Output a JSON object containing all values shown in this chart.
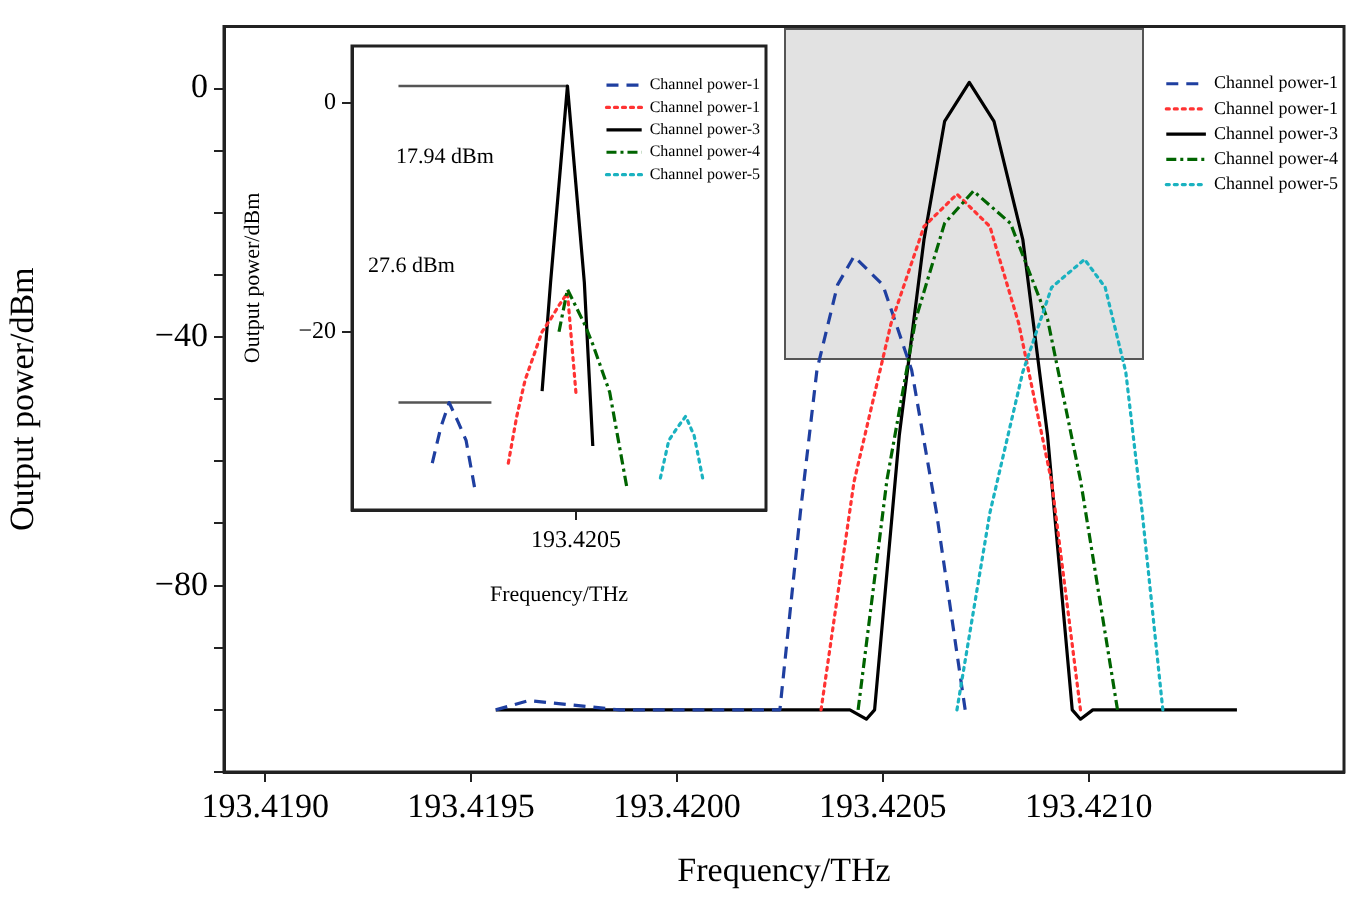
{
  "chart_data": [
    {
      "type": "line",
      "xlabel": "Frequency/THz",
      "ylabel": "Output power/dBm",
      "xlim": [
        193.4189,
        193.42162
      ],
      "ylim": [
        -110,
        10
      ],
      "xticks": [
        {
          "value": 193.419,
          "label": "193.4190"
        },
        {
          "value": 193.4195,
          "label": "193.4195"
        },
        {
          "value": 193.42,
          "label": "193.4200"
        },
        {
          "value": 193.4205,
          "label": "193.4205"
        },
        {
          "value": 193.421,
          "label": "193.4210"
        }
      ],
      "yticks": [
        {
          "value": -110,
          "label": null
        },
        {
          "value": -100,
          "label": null
        },
        {
          "value": -90,
          "label": null
        },
        {
          "value": -80,
          "label": "−80"
        },
        {
          "value": -70,
          "label": null
        },
        {
          "value": -60,
          "label": null
        },
        {
          "value": -50,
          "label": null
        },
        {
          "value": -40,
          "label": "−40"
        },
        {
          "value": -30,
          "label": null
        },
        {
          "value": -20,
          "label": null
        },
        {
          "value": -10,
          "label": null
        },
        {
          "value": 0,
          "label": "0"
        }
      ],
      "legend": "top right",
      "marker": "none",
      "grid": false,
      "series": [
        {
          "name": "Channel power-1",
          "color": "#1f3fa0",
          "line_style": "dashed",
          "x": [
            193.41956,
            193.41964,
            193.41986,
            193.42025,
            193.4203,
            193.42034,
            193.42039,
            193.42043,
            193.4205,
            193.42057,
            193.42063,
            193.4207
          ],
          "values": [
            -100,
            -98.5,
            -100,
            -100,
            -68.1,
            -45.3,
            -31.6,
            -27,
            -31.6,
            -45.3,
            -68.1,
            -100
          ]
        },
        {
          "name": "Channel power-1",
          "color": "#ff3333",
          "line_style": "dotted",
          "x": [
            193.42035,
            193.42043,
            193.42052,
            193.4206,
            193.42068,
            193.42076,
            193.42083,
            193.42091,
            193.42098
          ],
          "values": [
            -100,
            -63.3,
            -37.8,
            -22.2,
            -17,
            -22.2,
            -37.8,
            -63.3,
            -100
          ]
        },
        {
          "name": "Channel power-3",
          "color": "#000000",
          "line_style": "solid",
          "x": [
            193.41956,
            193.42042,
            193.42046,
            193.42048,
            193.42054,
            193.4206,
            193.42065,
            193.42071,
            193.42077,
            193.42084,
            193.4209,
            193.42096,
            193.42098,
            193.42101,
            193.42136
          ],
          "values": [
            -100,
            -100,
            -101.5,
            -100,
            -55.8,
            -24.3,
            -5.3,
            1,
            -5.3,
            -24.3,
            -55.8,
            -100,
            -101.5,
            -100,
            -100
          ]
        },
        {
          "name": "Channel power-4",
          "color": "#006400",
          "line_style": "dashdot",
          "x": [
            193.42044,
            193.42051,
            193.42058,
            193.42065,
            193.42072,
            193.42081,
            193.4209,
            193.42098,
            193.42107
          ],
          "values": [
            -100,
            -63,
            -37.1,
            -21.7,
            -16.5,
            -21.7,
            -37.1,
            -63,
            -100
          ]
        },
        {
          "name": "Channel power-5",
          "color": "#1ab2c0",
          "line_style": "dotted",
          "x": [
            193.42068,
            193.42076,
            193.42084,
            193.42091,
            193.42099,
            193.42104,
            193.42109,
            193.42113,
            193.42118
          ],
          "values": [
            -100,
            -68.3,
            -45.6,
            -32,
            -27.5,
            -32,
            -45.6,
            -68.3,
            -100
          ]
        }
      ]
    },
    {
      "type": "line",
      "xlabel": "Frequency/THz",
      "ylabel": "Output power/dBm",
      "ylim": [
        -35.6,
        5
      ],
      "categories": [
        null,
        null,
        null,
        null,
        null,
        null,
        null,
        null,
        null,
        null,
        null,
        null,
        null,
        null,
        null,
        null,
        null,
        null,
        null,
        null,
        null,
        null,
        null,
        null,
        null,
        null,
        "193.4205",
        null,
        null,
        null,
        null,
        null,
        null,
        null,
        null,
        null,
        null,
        null,
        null,
        null,
        null,
        null,
        null,
        null,
        null,
        null,
        null,
        null,
        null
      ],
      "yticks": [
        {
          "value": -20,
          "label": "−20"
        },
        {
          "value": 0,
          "label": "0"
        }
      ],
      "legend": "top right",
      "marker": "none",
      "grid": false,
      "annotations": [
        "17.94 dBm",
        "27.6 dBm"
      ],
      "series": [
        {
          "name": "Channel power-1",
          "color": "#1f3fa0",
          "line_style": "dashed",
          "values": [
            null,
            null,
            null,
            null,
            null,
            null,
            null,
            null,
            null,
            -31.5,
            -28.4,
            -26.2,
            -27.8,
            -29.5,
            -33.6,
            null,
            null,
            null,
            null,
            null,
            null,
            null,
            null,
            null,
            null,
            null,
            null,
            null,
            null,
            null,
            null,
            null,
            null,
            null,
            null,
            null,
            null,
            null,
            null,
            null,
            null,
            null,
            null,
            null,
            null,
            null,
            null,
            null,
            null
          ]
        },
        {
          "name": "Channel power-1",
          "color": "#ff3333",
          "line_style": "dotted",
          "values": [
            null,
            null,
            null,
            null,
            null,
            null,
            null,
            null,
            null,
            null,
            null,
            null,
            null,
            null,
            null,
            null,
            null,
            null,
            -31.5,
            -27.4,
            -24.2,
            -22.1,
            -20,
            -18.9,
            -17.7,
            -16.6,
            -25.3,
            null,
            null,
            null,
            null,
            null,
            null,
            null,
            null,
            null,
            null,
            null,
            null,
            null,
            null,
            null,
            null,
            null,
            null,
            null,
            null,
            null,
            null
          ]
        },
        {
          "name": "Channel power-3",
          "color": "#000000",
          "line_style": "solid",
          "values": [
            null,
            null,
            null,
            null,
            null,
            null,
            null,
            null,
            null,
            null,
            null,
            null,
            null,
            null,
            null,
            null,
            null,
            null,
            null,
            null,
            null,
            null,
            -25.2,
            -15.7,
            -7.1,
            1.5,
            -7.1,
            -15.7,
            -30,
            null,
            null,
            null,
            null,
            null,
            null,
            null,
            null,
            null,
            null,
            null,
            null,
            null,
            null,
            null,
            null,
            null,
            null,
            null,
            null
          ]
        },
        {
          "name": "Channel power-4",
          "color": "#006400",
          "line_style": "dashdot",
          "values": [
            null,
            null,
            null,
            null,
            null,
            null,
            null,
            null,
            null,
            null,
            null,
            null,
            null,
            null,
            null,
            null,
            null,
            null,
            null,
            null,
            null,
            null,
            null,
            null,
            -20,
            -16.3,
            -17.8,
            -19.3,
            -21.1,
            -23.2,
            -25.3,
            -29.4,
            -33.5,
            null,
            null,
            null,
            null,
            null,
            null,
            null,
            null,
            null,
            null,
            null,
            null,
            null,
            null,
            null,
            null
          ]
        },
        {
          "name": "Channel power-5",
          "color": "#1ab2c0",
          "line_style": "dotted",
          "values": [
            null,
            null,
            null,
            null,
            null,
            null,
            null,
            null,
            null,
            null,
            null,
            null,
            null,
            null,
            null,
            null,
            null,
            null,
            null,
            null,
            null,
            null,
            null,
            null,
            null,
            null,
            null,
            null,
            null,
            null,
            null,
            null,
            null,
            null,
            null,
            null,
            -32.8,
            -29.5,
            -28.4,
            -27.4,
            -29.1,
            -32.8,
            null,
            null,
            null,
            null,
            null,
            null,
            null
          ]
        },
        {
          "type": "line",
          "color": "#555555",
          "line_style": "solid",
          "values": [
            null,
            null,
            null,
            null,
            null,
            1.5,
            1.5,
            1.5,
            1.5,
            1.5,
            1.5,
            1.5,
            1.5,
            1.5,
            1.5,
            1.5,
            1.5,
            1.5,
            1.5,
            1.5,
            1.5,
            1.5,
            1.5,
            1.5,
            1.5,
            1.5,
            null,
            null,
            null,
            null,
            null,
            null,
            null,
            null,
            null,
            null,
            null,
            null,
            null,
            null,
            null,
            null,
            null,
            null,
            null,
            null,
            null,
            null,
            null
          ]
        },
        {
          "type": "line",
          "color": "#555555",
          "line_style": "solid",
          "values": [
            null,
            null,
            null,
            null,
            null,
            -26.2,
            -26.2,
            -26.2,
            -26.2,
            -26.2,
            -26.2,
            -26.2,
            -26.2,
            -26.2,
            -26.2,
            -26.2,
            -26.2,
            null,
            null,
            null,
            null,
            null,
            null,
            null,
            null,
            null,
            null,
            null,
            null,
            null,
            null,
            null,
            null,
            null,
            null,
            null,
            null,
            null,
            null,
            null,
            null,
            null,
            null,
            null,
            null,
            null,
            null,
            null,
            null
          ]
        }
      ]
    }
  ]
}
